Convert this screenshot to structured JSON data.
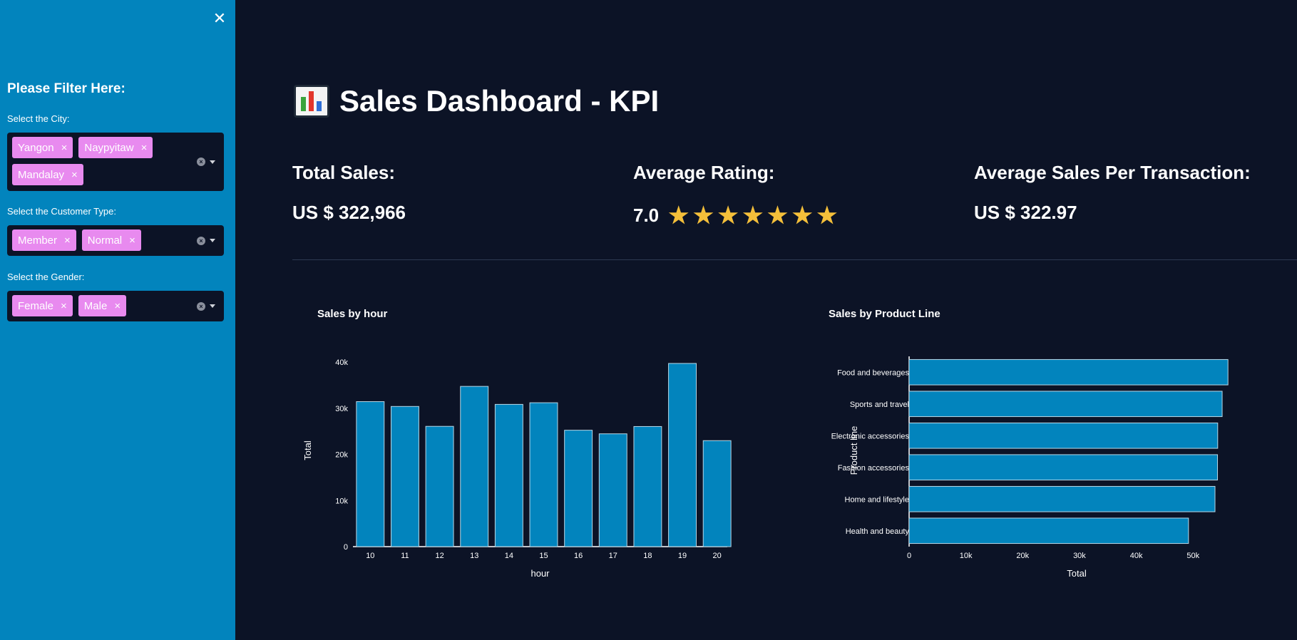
{
  "sidebar": {
    "heading": "Please Filter Here:",
    "close_icon": "close-icon",
    "filters": [
      {
        "label": "Select the City:",
        "tags": [
          "Yangon",
          "Naypyitaw",
          "Mandalay"
        ]
      },
      {
        "label": "Select the Customer Type:",
        "tags": [
          "Member",
          "Normal"
        ]
      },
      {
        "label": "Select the Gender:",
        "tags": [
          "Female",
          "Male"
        ]
      }
    ],
    "tag_remove": "×",
    "tag_color": "#e88aef",
    "background": "#0284bd"
  },
  "header": {
    "title": "Sales Dashboard - KPI",
    "icon": "bar-chart-icon"
  },
  "kpis": {
    "total_sales_title": "Total Sales:",
    "total_sales_value": "US $ 322,966",
    "avg_rating_title": "Average Rating:",
    "avg_rating_value": "7.0",
    "avg_rating_stars": 7,
    "avg_txn_title": "Average Sales Per Transaction:",
    "avg_txn_value": "US $ 322.97",
    "star_color": "#f4bf3a"
  },
  "colors": {
    "page_bg": "#0c1326",
    "bar_fill": "#0284bd",
    "bar_stroke": "#b8d7e6"
  },
  "chart_data": [
    {
      "type": "bar",
      "title": "Sales by hour",
      "xlabel": "hour",
      "ylabel": "Total",
      "categories": [
        "10",
        "11",
        "12",
        "13",
        "14",
        "15",
        "16",
        "17",
        "18",
        "19",
        "20"
      ],
      "values": [
        31422,
        30377,
        26065,
        34724,
        30828,
        31180,
        25226,
        24446,
        26031,
        39700,
        22970
      ],
      "ylim": [
        0,
        40000
      ],
      "yticks": [
        "0",
        "10k",
        "20k",
        "30k",
        "40k"
      ],
      "ytick_values": [
        0,
        10000,
        20000,
        30000,
        40000
      ]
    },
    {
      "type": "bar",
      "orientation": "horizontal",
      "title": "Sales by Product Line",
      "xlabel": "Total",
      "ylabel": "Product line",
      "categories": [
        "Food and beverages",
        "Sports and travel",
        "Electronic accessories",
        "Fashion accessories",
        "Home and lifestyle",
        "Health and beauty"
      ],
      "values": [
        56145,
        55123,
        54338,
        54306,
        53862,
        49194
      ],
      "xlim": [
        0,
        56500
      ],
      "xticks": [
        "0",
        "10k",
        "20k",
        "30k",
        "40k",
        "50k"
      ],
      "xtick_values": [
        0,
        10000,
        20000,
        30000,
        40000,
        50000
      ]
    }
  ]
}
